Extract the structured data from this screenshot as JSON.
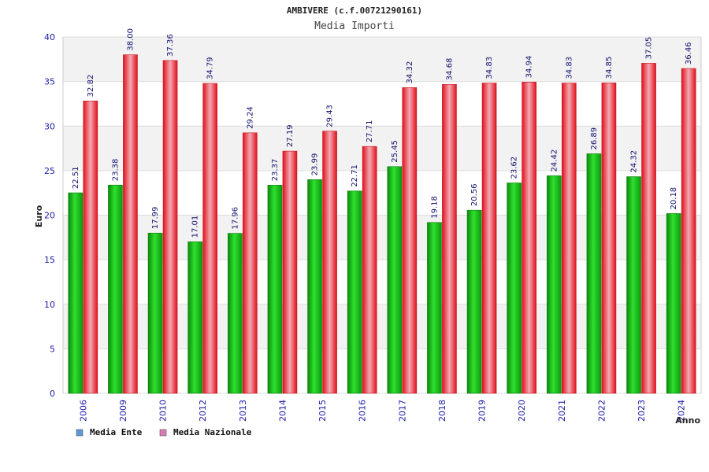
{
  "chart_data": {
    "type": "bar",
    "title": "AMBIVERE (c.f.00721290161)",
    "subtitle": "Media Importi",
    "ylabel": "Euro",
    "xlabel": "Anno",
    "ylim": [
      0,
      40
    ],
    "yticks": [
      0,
      5,
      10,
      15,
      20,
      25,
      30,
      35,
      40
    ],
    "grid": true,
    "legend_position": "bottom-left",
    "categories": [
      "2006",
      "2009",
      "2010",
      "2012",
      "2013",
      "2014",
      "2015",
      "2016",
      "2017",
      "2018",
      "2019",
      "2020",
      "2021",
      "2022",
      "2023",
      "2024"
    ],
    "series": [
      {
        "name": "Media Ente",
        "color": "#16b516",
        "legend_color": "#5b9bd5",
        "values": [
          22.51,
          23.38,
          17.99,
          17.01,
          17.96,
          23.37,
          23.99,
          22.71,
          25.45,
          19.18,
          20.56,
          23.62,
          24.42,
          26.89,
          24.32,
          20.18
        ],
        "labels": [
          "22.51",
          "23.38",
          "17.99",
          "17.01",
          "17.96",
          "23.37",
          "23.99",
          "22.71",
          "25.45",
          "19.18",
          "20.56",
          "23.62",
          "24.42",
          "26.89",
          "24.32",
          "20.18"
        ]
      },
      {
        "name": "Media Nazionale",
        "color": "#e8242e",
        "legend_color": "#d97ab4",
        "values": [
          32.82,
          38.0,
          37.36,
          34.79,
          29.24,
          27.19,
          29.43,
          27.71,
          34.32,
          34.68,
          34.83,
          34.94,
          34.83,
          34.85,
          37.05,
          36.46
        ],
        "labels": [
          "32.82",
          "38.00",
          "37.36",
          "34.79",
          "29.24",
          "27.19",
          "29.43",
          "27.71",
          "34.32",
          "34.68",
          "34.83",
          "34.94",
          "34.83",
          "34.85",
          "37.05",
          "36.46"
        ]
      }
    ]
  }
}
